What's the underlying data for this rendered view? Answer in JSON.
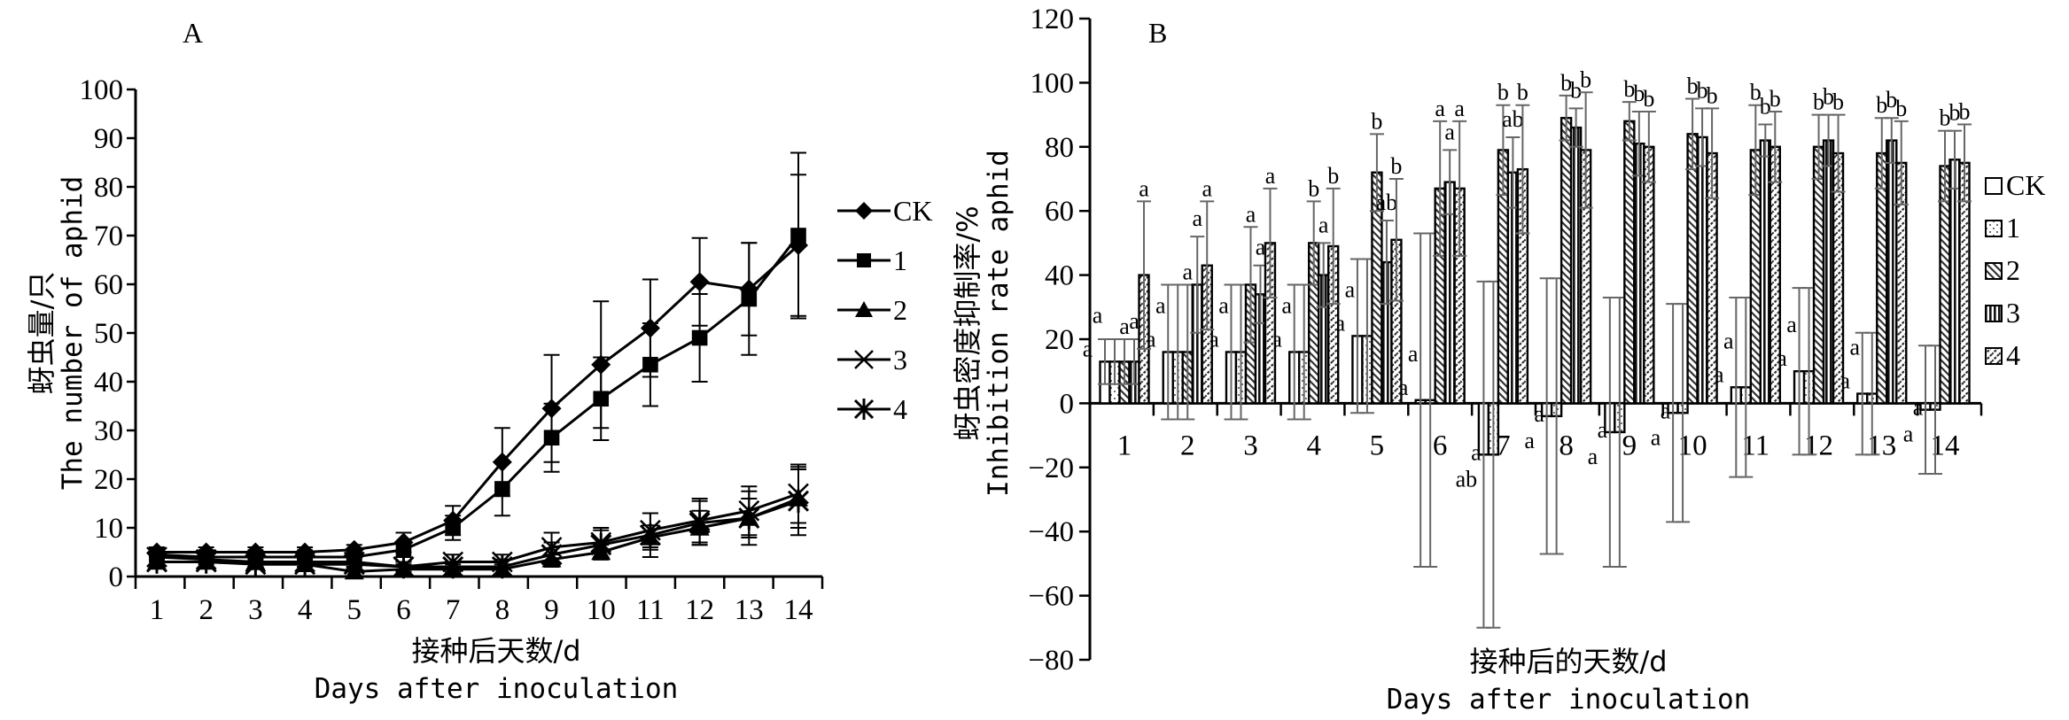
{
  "chart_data": [
    {
      "type": "line",
      "panel": "A",
      "title": "A",
      "xlabel": "接种后天数/d",
      "xlabel_en": "Days after inoculation",
      "ylabel": "蚜虫量/只",
      "ylabel_en": "The number of aphid",
      "xlim": [
        1,
        14
      ],
      "ylim": [
        0,
        100
      ],
      "yticks": [
        0,
        10,
        20,
        30,
        40,
        50,
        60,
        70,
        80,
        90,
        100
      ],
      "x": [
        1,
        2,
        3,
        4,
        5,
        6,
        7,
        8,
        9,
        10,
        11,
        12,
        13,
        14
      ],
      "grid": false,
      "legend_position": "right",
      "series": [
        {
          "name": "CK",
          "marker": "diamond",
          "values": [
            5,
            5,
            5,
            5,
            5.5,
            7,
            11.5,
            23.5,
            34.5,
            43.5,
            51,
            60.5,
            59,
            68
          ],
          "errors": [
            1,
            1,
            1,
            1,
            1,
            2,
            3,
            7,
            11,
            13,
            10,
            9,
            9.5,
            14.5
          ]
        },
        {
          "name": "1",
          "marker": "square",
          "values": [
            4.5,
            4,
            4,
            4,
            4,
            5.5,
            10,
            18,
            28.5,
            36.5,
            43.5,
            49,
            57,
            70
          ],
          "errors": [
            1,
            1,
            1,
            1,
            1,
            1.5,
            2.5,
            5.5,
            7,
            8.5,
            8.5,
            9,
            11.5,
            17
          ]
        },
        {
          "name": "2",
          "marker": "triangle",
          "values": [
            3,
            3,
            3,
            2.5,
            1,
            1.5,
            1.5,
            1.5,
            3.5,
            5,
            8,
            10,
            12,
            16
          ],
          "errors": [
            1,
            1,
            1,
            1,
            1,
            1,
            1,
            1,
            1,
            1.5,
            2.5,
            3.5,
            4,
            6
          ]
        },
        {
          "name": "3",
          "marker": "x",
          "values": [
            4,
            3.5,
            3,
            3,
            3,
            2,
            3,
            3,
            6,
            7,
            9.5,
            11.5,
            13.5,
            17
          ],
          "errors": [
            1,
            1,
            1,
            1,
            1,
            1,
            1.5,
            1.5,
            3,
            3,
            3.5,
            4.5,
            5,
            6
          ]
        },
        {
          "name": "4",
          "marker": "asterisk",
          "values": [
            3,
            3,
            2.5,
            2.5,
            2.5,
            2,
            2,
            2,
            4.5,
            6.5,
            8.5,
            11,
            12,
            15.5
          ],
          "errors": [
            1,
            1,
            1,
            1,
            1,
            1,
            1,
            1.5,
            2.5,
            3,
            4.5,
            4.5,
            5.5,
            7
          ]
        }
      ]
    },
    {
      "type": "bar",
      "panel": "B",
      "title": "B",
      "xlabel": "接种后的天数/d",
      "xlabel_en": "Days after inoculation",
      "ylabel": "蚜虫密度抑制率/%",
      "ylabel_en": "Inhibition rate aphid",
      "categories": [
        "1",
        "2",
        "3",
        "4",
        "5",
        "6",
        "7",
        "8",
        "9",
        "10",
        "11",
        "12",
        "13",
        "14"
      ],
      "ylim": [
        -80,
        120
      ],
      "yticks": [
        -80,
        -60,
        -40,
        -20,
        0,
        20,
        40,
        60,
        80,
        100,
        120
      ],
      "grid": false,
      "legend_position": "right",
      "series": [
        {
          "name": "CK",
          "pattern": "empty",
          "values": [
            13,
            16,
            16,
            16,
            21,
            1,
            -16,
            -4,
            -9,
            -3,
            5,
            10,
            3,
            -2
          ],
          "errors": [
            7,
            21,
            21,
            21,
            24,
            52,
            54,
            43,
            42,
            34,
            28,
            26,
            19,
            20
          ],
          "labels": [
            "a",
            "a",
            "a",
            "a",
            "a",
            "a",
            "ab",
            "a",
            "a",
            "a",
            "a",
            "a",
            "a",
            "a"
          ]
        },
        {
          "name": "1",
          "pattern": "dotted",
          "values": [
            13,
            16,
            16,
            16,
            21,
            1,
            -16,
            -4,
            -9,
            -3,
            5,
            10,
            3,
            -2
          ],
          "errors": [
            7,
            21,
            21,
            21,
            24,
            52,
            54,
            43,
            42,
            34,
            28,
            26,
            19,
            20
          ],
          "labels": [
            "a",
            "a",
            "a",
            "a",
            "a",
            "a",
            "a",
            "a",
            "a",
            "a",
            "a",
            "a",
            "a",
            "a"
          ]
        },
        {
          "name": "2",
          "pattern": "diagonal",
          "values": [
            13,
            16,
            37,
            50,
            72,
            67,
            79,
            89,
            88,
            84,
            79,
            80,
            78,
            74
          ],
          "errors": [
            7,
            21,
            18,
            13,
            12,
            21,
            14,
            7,
            6,
            11,
            14,
            10,
            11,
            11
          ],
          "labels": [
            "a",
            "a",
            "a",
            "b",
            "b",
            "a",
            "b",
            "b",
            "b",
            "b",
            "b",
            "b",
            "b",
            "b"
          ]
        },
        {
          "name": "3",
          "pattern": "vertical",
          "values": [
            13,
            37,
            34,
            40,
            44,
            69,
            72,
            86,
            81,
            83,
            82,
            82,
            82,
            76
          ],
          "errors": [
            7,
            15,
            9,
            10,
            13,
            10,
            11,
            6,
            10,
            9,
            5,
            8,
            7,
            9
          ],
          "labels": [
            "a",
            "a",
            "a",
            "a",
            "ab",
            "a",
            "ab",
            "b",
            "b",
            "b",
            "b",
            "b",
            "b",
            "b"
          ]
        },
        {
          "name": "4",
          "pattern": "zigzag",
          "values": [
            40,
            43,
            50,
            49,
            51,
            67,
            73,
            79,
            80,
            78,
            80,
            78,
            75,
            75
          ],
          "errors": [
            23,
            20,
            17,
            18,
            19,
            21,
            20,
            18,
            11,
            14,
            11,
            12,
            13,
            12
          ],
          "labels": [
            "a",
            "a",
            "a",
            "b",
            "b",
            "a",
            "b",
            "b",
            "b",
            "b",
            "b",
            "b",
            "b",
            "b"
          ]
        }
      ]
    }
  ],
  "legend_a": {
    "items": [
      "CK",
      "1",
      "2",
      "3",
      "4"
    ]
  },
  "legend_b": {
    "items": [
      "CK",
      "1",
      "2",
      "3",
      "4"
    ]
  }
}
